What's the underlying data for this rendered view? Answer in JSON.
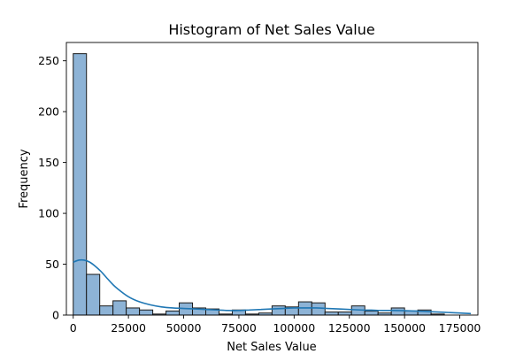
{
  "chart_data": {
    "type": "bar",
    "subtype": "histogram",
    "title": "Histogram of Net Sales Value",
    "xlabel": "Net Sales Value",
    "ylabel": "Frequency",
    "xlim": [
      -3100,
      183200
    ],
    "ylim": [
      0,
      268
    ],
    "xticks": [
      0,
      25000,
      50000,
      75000,
      100000,
      125000,
      150000,
      175000
    ],
    "yticks": [
      0,
      50,
      100,
      150,
      200,
      250
    ],
    "bin_start": 0,
    "bin_width": 6000,
    "counts": [
      257,
      40,
      9,
      14,
      7,
      5,
      1,
      4,
      12,
      7,
      6,
      1,
      5,
      1,
      2,
      9,
      8,
      13,
      12,
      3,
      3,
      9,
      4,
      2,
      7,
      4,
      5,
      1
    ],
    "kde": {
      "x": [
        0,
        2500,
        5000,
        7500,
        10000,
        12500,
        15000,
        17500,
        20000,
        25000,
        30000,
        35000,
        40000,
        45000,
        50000,
        55000,
        60000,
        65000,
        70000,
        75000,
        80000,
        85000,
        90000,
        95000,
        100000,
        105000,
        110000,
        115000,
        120000,
        125000,
        130000,
        135000,
        140000,
        145000,
        150000,
        155000,
        160000,
        165000,
        170000,
        175000,
        180000
      ],
      "y": [
        52,
        54,
        54,
        52,
        48,
        43,
        37,
        31,
        26,
        18,
        13,
        10,
        8,
        7,
        6.5,
        6,
        5.5,
        5,
        4.5,
        4.5,
        5,
        5.5,
        6,
        6.5,
        7,
        7,
        7,
        6.5,
        6,
        5.5,
        5,
        4.8,
        4.5,
        4.5,
        4.3,
        4,
        3.5,
        3,
        2.5,
        2,
        1.5
      ]
    },
    "bar_color": "#8db3d6",
    "kde_color": "#1f77b4",
    "grid": false,
    "legend": "none"
  }
}
